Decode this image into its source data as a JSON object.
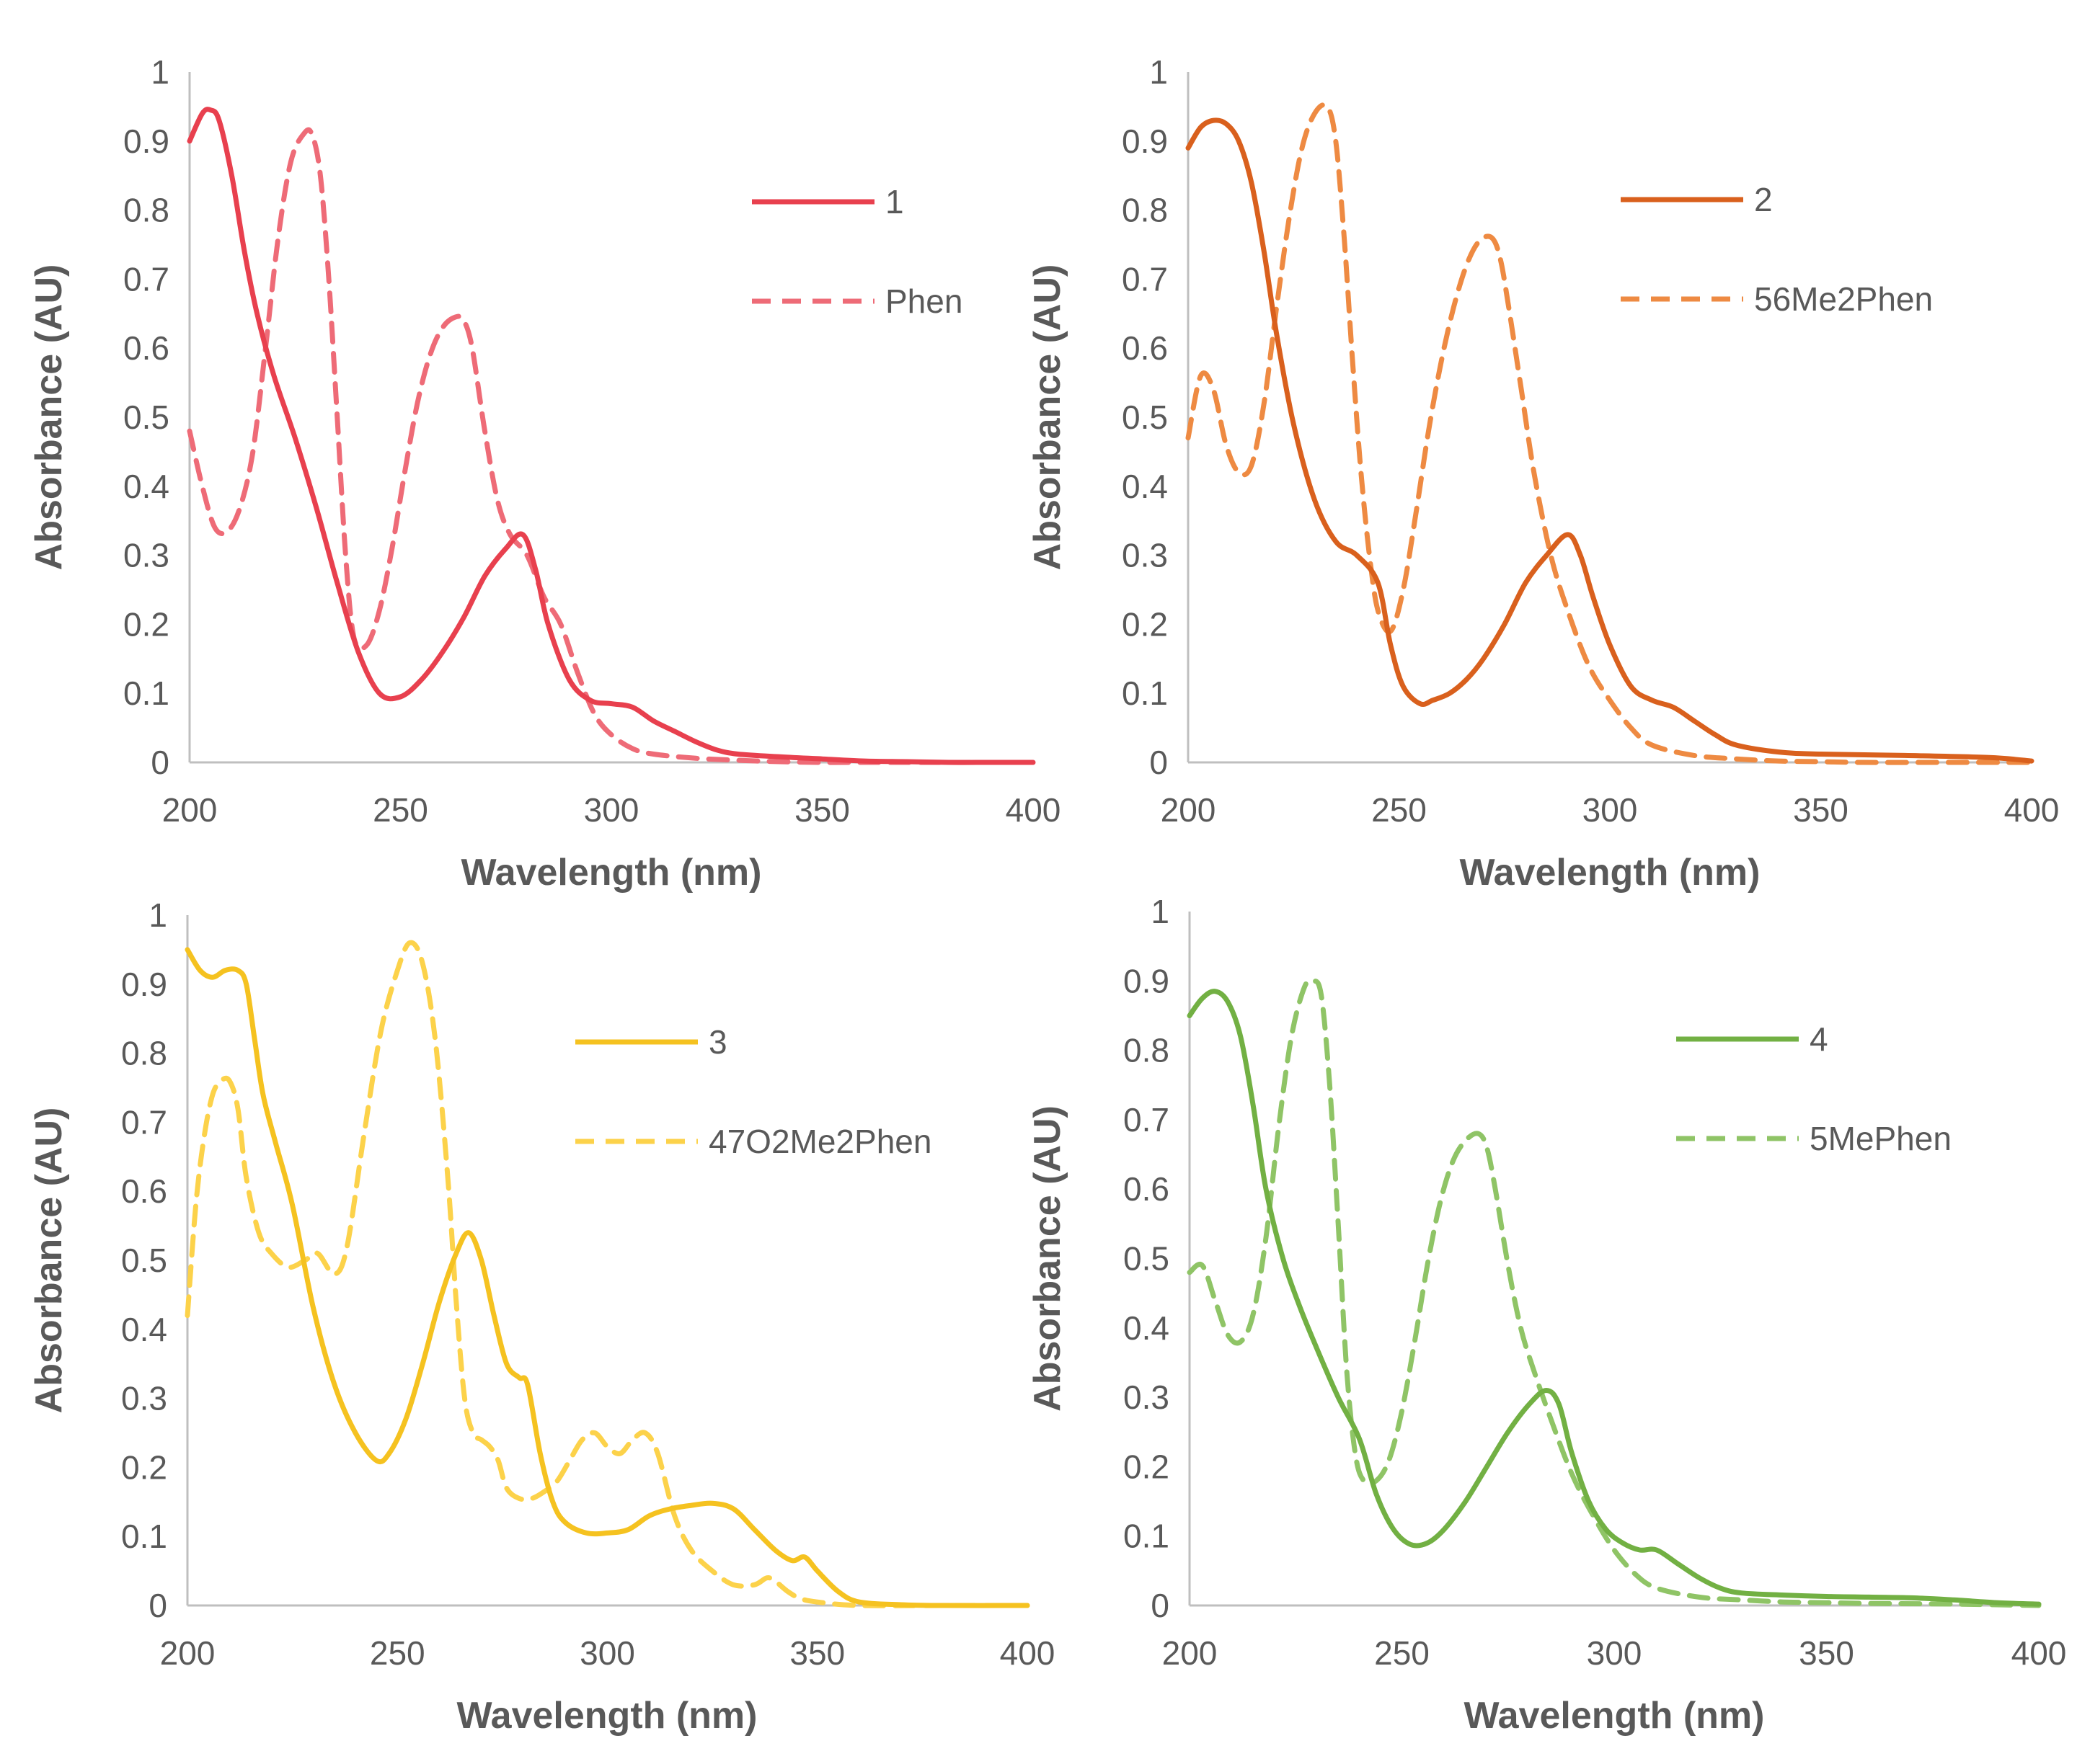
{
  "chart_data": [
    {
      "type": "line",
      "title": "",
      "xlabel": "Wavelength (nm)",
      "ylabel": "Absorbance (AU)",
      "xlim": [
        200,
        400
      ],
      "ylim": [
        0,
        1
      ],
      "xticks": [
        "200",
        "250",
        "300",
        "350",
        "400"
      ],
      "yticks": [
        "0",
        "0.1",
        "0.2",
        "0.3",
        "0.4",
        "0.5",
        "0.6",
        "0.7",
        "0.8",
        "0.9",
        "1"
      ],
      "grid": false,
      "legend_position": "top-right",
      "series": [
        {
          "name": "1",
          "color": "#e8404e",
          "dash": "solid",
          "x": [
            200,
            203,
            205,
            207,
            210,
            213,
            216,
            220,
            225,
            230,
            235,
            240,
            245,
            250,
            255,
            260,
            265,
            270,
            275,
            279,
            282,
            285,
            290,
            295,
            300,
            305,
            310,
            315,
            320,
            325,
            330,
            340,
            350,
            360,
            370,
            380,
            390,
            400
          ],
          "y": [
            0.9,
            0.94,
            0.945,
            0.93,
            0.85,
            0.74,
            0.65,
            0.56,
            0.47,
            0.37,
            0.26,
            0.16,
            0.1,
            0.095,
            0.12,
            0.16,
            0.21,
            0.27,
            0.31,
            0.33,
            0.28,
            0.2,
            0.12,
            0.09,
            0.085,
            0.08,
            0.06,
            0.045,
            0.03,
            0.018,
            0.012,
            0.008,
            0.005,
            0.002,
            0.001,
            0.0,
            0.0,
            0.0
          ]
        },
        {
          "name": "Phen",
          "color": "#ee6b77",
          "dash": "dashed",
          "x": [
            200,
            203,
            206,
            209,
            212,
            215,
            218,
            221,
            224,
            227,
            229,
            231,
            233,
            235,
            237,
            239,
            242,
            245,
            248,
            251,
            254,
            257,
            260,
            263,
            265,
            267,
            270,
            273,
            276,
            280,
            284,
            288,
            292,
            296,
            300,
            305,
            310,
            320,
            330,
            340,
            350,
            360,
            380,
            400
          ],
          "y": [
            0.48,
            0.4,
            0.34,
            0.335,
            0.37,
            0.45,
            0.6,
            0.76,
            0.87,
            0.91,
            0.91,
            0.85,
            0.7,
            0.5,
            0.3,
            0.18,
            0.17,
            0.22,
            0.31,
            0.42,
            0.52,
            0.59,
            0.63,
            0.645,
            0.64,
            0.6,
            0.48,
            0.38,
            0.33,
            0.3,
            0.24,
            0.2,
            0.13,
            0.07,
            0.04,
            0.02,
            0.012,
            0.006,
            0.003,
            0.001,
            0.0,
            0.0,
            0.0,
            0.0
          ]
        }
      ]
    },
    {
      "type": "line",
      "title": "",
      "xlabel": "Wavelength (nm)",
      "ylabel": "Absorbance (AU)",
      "xlim": [
        200,
        400
      ],
      "ylim": [
        0,
        1
      ],
      "xticks": [
        "200",
        "250",
        "300",
        "350",
        "400"
      ],
      "yticks": [
        "0",
        "0.1",
        "0.2",
        "0.3",
        "0.4",
        "0.5",
        "0.6",
        "0.7",
        "0.8",
        "0.9",
        "1"
      ],
      "grid": false,
      "legend_position": "top-right",
      "series": [
        {
          "name": "2",
          "color": "#d9601d",
          "dash": "solid",
          "x": [
            200,
            203,
            206,
            209,
            212,
            215,
            218,
            221,
            225,
            230,
            235,
            240,
            245,
            248,
            251,
            255,
            258,
            262,
            266,
            270,
            275,
            280,
            285,
            290,
            293,
            296,
            300,
            305,
            310,
            315,
            320,
            325,
            330,
            340,
            350,
            370,
            390,
            400
          ],
          "y": [
            0.89,
            0.92,
            0.93,
            0.925,
            0.9,
            0.84,
            0.74,
            0.62,
            0.49,
            0.38,
            0.32,
            0.3,
            0.26,
            0.17,
            0.11,
            0.085,
            0.09,
            0.1,
            0.12,
            0.15,
            0.2,
            0.26,
            0.3,
            0.33,
            0.3,
            0.24,
            0.17,
            0.11,
            0.09,
            0.08,
            0.06,
            0.04,
            0.025,
            0.015,
            0.012,
            0.01,
            0.007,
            0.002
          ]
        },
        {
          "name": "56Me2Phen",
          "color": "#ee8a42",
          "dash": "dashed",
          "x": [
            200,
            203,
            206,
            209,
            212,
            215,
            218,
            221,
            224,
            227,
            230,
            233,
            235,
            237,
            239,
            241,
            243,
            245,
            248,
            251,
            254,
            257,
            260,
            263,
            266,
            269,
            272,
            274,
            276,
            279,
            282,
            286,
            290,
            295,
            300,
            305,
            310,
            320,
            330,
            340,
            350,
            360,
            380,
            400
          ],
          "y": [
            0.47,
            0.56,
            0.54,
            0.46,
            0.42,
            0.43,
            0.52,
            0.66,
            0.79,
            0.89,
            0.94,
            0.95,
            0.9,
            0.76,
            0.58,
            0.42,
            0.3,
            0.22,
            0.19,
            0.25,
            0.36,
            0.48,
            0.58,
            0.66,
            0.72,
            0.755,
            0.76,
            0.73,
            0.66,
            0.54,
            0.42,
            0.3,
            0.22,
            0.14,
            0.09,
            0.05,
            0.025,
            0.01,
            0.005,
            0.002,
            0.001,
            0.0,
            0.0,
            0.0
          ]
        }
      ]
    },
    {
      "type": "line",
      "title": "",
      "xlabel": "Wavelength (nm)",
      "ylabel": "Absorbance (AU)",
      "xlim": [
        200,
        400
      ],
      "ylim": [
        0,
        1
      ],
      "xticks": [
        "200",
        "250",
        "300",
        "350",
        "400"
      ],
      "yticks": [
        "0",
        "0.1",
        "0.2",
        "0.3",
        "0.4",
        "0.5",
        "0.6",
        "0.7",
        "0.8",
        "0.9",
        "1"
      ],
      "grid": false,
      "legend_position": "top-right",
      "series": [
        {
          "name": "3",
          "color": "#f5c220",
          "dash": "solid",
          "x": [
            200,
            203,
            206,
            209,
            212,
            214,
            216,
            218,
            221,
            225,
            230,
            235,
            240,
            245,
            248,
            252,
            256,
            260,
            264,
            267,
            270,
            273,
            276,
            279,
            281,
            284,
            287,
            290,
            295,
            300,
            305,
            310,
            315,
            320,
            325,
            330,
            335,
            340,
            344,
            347,
            350,
            355,
            360,
            370,
            380,
            400
          ],
          "y": [
            0.95,
            0.92,
            0.91,
            0.92,
            0.92,
            0.9,
            0.82,
            0.74,
            0.67,
            0.58,
            0.43,
            0.32,
            0.25,
            0.21,
            0.22,
            0.27,
            0.35,
            0.44,
            0.51,
            0.54,
            0.5,
            0.42,
            0.35,
            0.33,
            0.32,
            0.22,
            0.15,
            0.12,
            0.105,
            0.105,
            0.11,
            0.13,
            0.14,
            0.145,
            0.148,
            0.14,
            0.11,
            0.08,
            0.065,
            0.07,
            0.05,
            0.02,
            0.005,
            0.001,
            0.0,
            0.0
          ]
        },
        {
          "name": "47O2Me2Phen",
          "color": "#fcd24a",
          "dash": "dashed",
          "x": [
            200,
            202,
            204,
            206,
            208,
            210,
            212,
            214,
            217,
            220,
            224,
            228,
            231,
            235,
            238,
            242,
            246,
            250,
            253,
            256,
            259,
            262,
            264,
            266,
            268,
            270,
            272,
            274,
            276,
            279,
            282,
            285,
            288,
            291,
            294,
            297,
            300,
            303,
            306,
            309,
            312,
            316,
            320,
            325,
            330,
            335,
            338,
            340,
            343,
            346,
            350,
            360,
            380,
            400
          ],
          "y": [
            0.42,
            0.58,
            0.68,
            0.74,
            0.76,
            0.76,
            0.72,
            0.62,
            0.54,
            0.51,
            0.49,
            0.5,
            0.51,
            0.48,
            0.52,
            0.68,
            0.83,
            0.92,
            0.96,
            0.93,
            0.82,
            0.62,
            0.44,
            0.3,
            0.25,
            0.24,
            0.23,
            0.21,
            0.17,
            0.155,
            0.155,
            0.165,
            0.18,
            0.21,
            0.24,
            0.25,
            0.23,
            0.22,
            0.24,
            0.25,
            0.22,
            0.13,
            0.08,
            0.05,
            0.03,
            0.03,
            0.04,
            0.035,
            0.02,
            0.01,
            0.005,
            0.0,
            0.0,
            0.0
          ]
        }
      ]
    },
    {
      "type": "line",
      "title": "",
      "xlabel": "Wavelength (nm)",
      "ylabel": "Absorbance (AU)",
      "xlim": [
        200,
        400
      ],
      "ylim": [
        0,
        1
      ],
      "xticks": [
        "200",
        "250",
        "300",
        "350",
        "400"
      ],
      "yticks": [
        "0",
        "0.1",
        "0.2",
        "0.3",
        "0.4",
        "0.5",
        "0.6",
        "0.7",
        "0.8",
        "0.9",
        "1"
      ],
      "grid": false,
      "legend_position": "top-right",
      "series": [
        {
          "name": "4",
          "color": "#72b043",
          "dash": "solid",
          "x": [
            200,
            203,
            206,
            209,
            212,
            215,
            218,
            222,
            226,
            230,
            235,
            240,
            244,
            248,
            252,
            256,
            260,
            265,
            270,
            275,
            280,
            284,
            287,
            290,
            294,
            298,
            302,
            306,
            310,
            315,
            320,
            325,
            330,
            340,
            350,
            360,
            370,
            380,
            390,
            400
          ],
          "y": [
            0.85,
            0.875,
            0.885,
            0.87,
            0.82,
            0.72,
            0.6,
            0.5,
            0.43,
            0.37,
            0.3,
            0.24,
            0.16,
            0.11,
            0.088,
            0.09,
            0.11,
            0.15,
            0.2,
            0.25,
            0.29,
            0.31,
            0.29,
            0.22,
            0.15,
            0.11,
            0.09,
            0.08,
            0.08,
            0.06,
            0.04,
            0.025,
            0.018,
            0.015,
            0.013,
            0.012,
            0.011,
            0.008,
            0.004,
            0.002
          ]
        },
        {
          "name": "5MePhen",
          "color": "#8fc466",
          "dash": "dashed",
          "x": [
            200,
            203,
            206,
            209,
            212,
            215,
            218,
            221,
            224,
            227,
            229,
            231,
            233,
            235,
            237,
            239,
            241,
            244,
            247,
            250,
            253,
            256,
            259,
            262,
            265,
            268,
            270,
            272,
            275,
            278,
            281,
            285,
            290,
            295,
            300,
            305,
            310,
            320,
            330,
            340,
            350,
            360,
            380,
            400
          ],
          "y": [
            0.48,
            0.49,
            0.44,
            0.39,
            0.38,
            0.42,
            0.53,
            0.69,
            0.82,
            0.89,
            0.9,
            0.88,
            0.75,
            0.55,
            0.34,
            0.22,
            0.18,
            0.18,
            0.21,
            0.28,
            0.38,
            0.49,
            0.58,
            0.64,
            0.67,
            0.68,
            0.66,
            0.6,
            0.49,
            0.4,
            0.34,
            0.27,
            0.19,
            0.13,
            0.08,
            0.045,
            0.025,
            0.012,
            0.008,
            0.005,
            0.004,
            0.003,
            0.002,
            0.0
          ]
        }
      ]
    }
  ]
}
